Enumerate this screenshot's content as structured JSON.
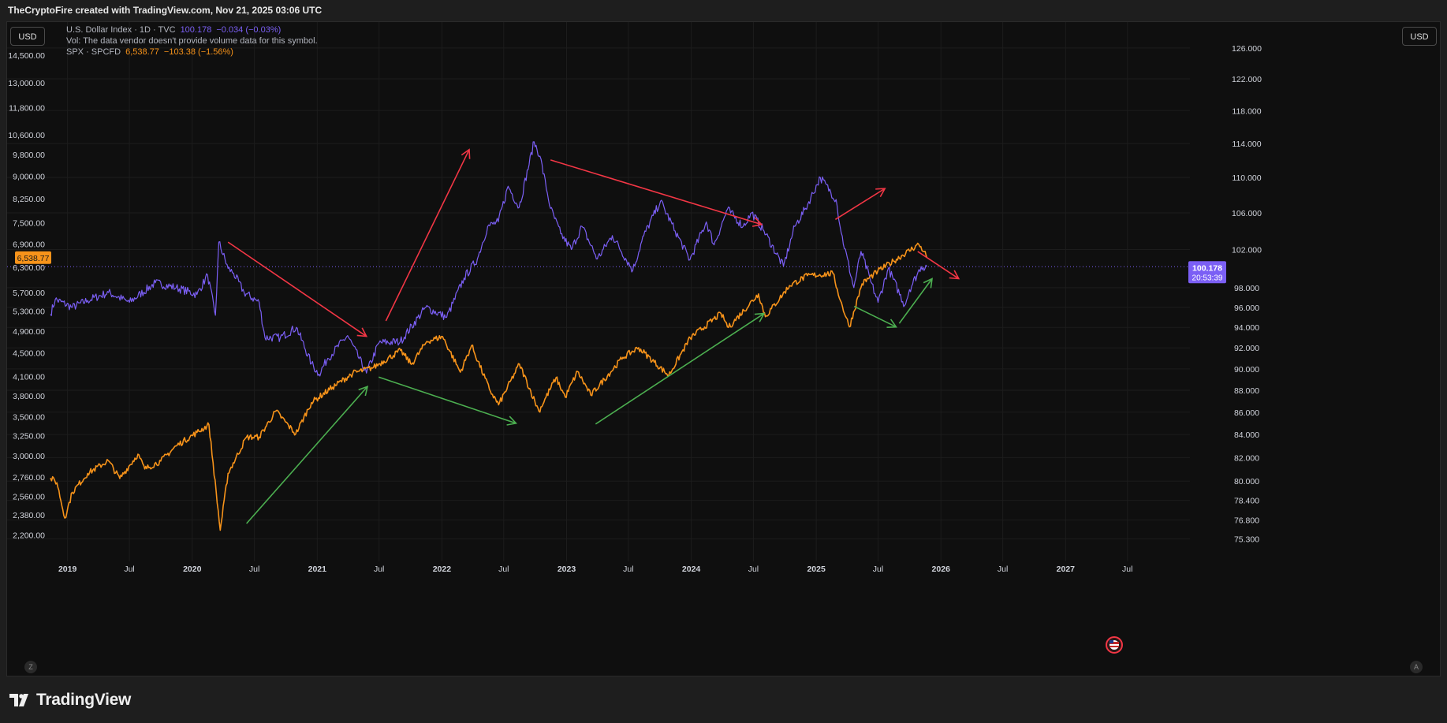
{
  "header": {
    "title": "TheCryptoFire created with TradingView.com, Nov 21, 2025 03:06 UTC"
  },
  "toolbar": {
    "currency_left": "USD",
    "currency_right": "USD",
    "auto_label": "A",
    "zoom_label": "Z"
  },
  "footer": {
    "logo_text": "TradingView"
  },
  "legend": {
    "dxy": {
      "name": "U.S. Dollar Index · 1D · TVC",
      "price": "100.178",
      "change": "−0.034 (−0.03%)"
    },
    "vol": {
      "text": "Vol: The data vendor doesn't provide volume data for this symbol."
    },
    "spx": {
      "name": "SPX · SPCFD",
      "price": "6,538.77",
      "change": "−103.38 (−1.56%)"
    }
  },
  "badges": {
    "spx_price": "6,538.77",
    "dxy_price": "100.178",
    "dxy_countdown": "20:53:39"
  },
  "colors": {
    "dxy": "#7b5ff5",
    "spx": "#f7931a",
    "up_arrow": "#4caf50",
    "down_arrow": "#f23645",
    "grid": "#1c1c1c",
    "price_line": "#7b5ff5"
  },
  "chart_data": {
    "type": "line",
    "x_axis": {
      "type": "date",
      "range": [
        "2018-11-12",
        "2027-12-31"
      ],
      "ticks": [
        {
          "date": "2019-01-01",
          "label": "2019"
        },
        {
          "date": "2019-07-01",
          "label": "Jul"
        },
        {
          "date": "2020-01-01",
          "label": "2020"
        },
        {
          "date": "2020-07-01",
          "label": "Jul"
        },
        {
          "date": "2021-01-01",
          "label": "2021"
        },
        {
          "date": "2021-07-01",
          "label": "Jul"
        },
        {
          "date": "2022-01-01",
          "label": "2022"
        },
        {
          "date": "2022-07-01",
          "label": "Jul"
        },
        {
          "date": "2023-01-01",
          "label": "2023"
        },
        {
          "date": "2023-07-01",
          "label": "Jul"
        },
        {
          "date": "2024-01-01",
          "label": "2024"
        },
        {
          "date": "2024-07-01",
          "label": "Jul"
        },
        {
          "date": "2025-01-01",
          "label": "2025"
        },
        {
          "date": "2025-07-01",
          "label": "Jul"
        },
        {
          "date": "2026-01-01",
          "label": "2026"
        },
        {
          "date": "2026-07-01",
          "label": "Jul"
        },
        {
          "date": "2027-01-01",
          "label": "2027"
        },
        {
          "date": "2027-07-01",
          "label": "Jul"
        }
      ]
    },
    "left_axis": {
      "scale": "log",
      "series": "SPX",
      "ticks": [
        {
          "v": 14500,
          "label": "14,500.00"
        },
        {
          "v": 13000,
          "label": "13,000.00"
        },
        {
          "v": 11800,
          "label": "11,800.00"
        },
        {
          "v": 10600,
          "label": "10,600.00"
        },
        {
          "v": 9800,
          "label": "9,800.00"
        },
        {
          "v": 9000,
          "label": "9,000.00"
        },
        {
          "v": 8250,
          "label": "8,250.00"
        },
        {
          "v": 7500,
          "label": "7,500.00"
        },
        {
          "v": 6900,
          "label": "6,900.00"
        },
        {
          "v": 6300,
          "label": "6,300.00"
        },
        {
          "v": 5700,
          "label": "5,700.00"
        },
        {
          "v": 5300,
          "label": "5,300.00"
        },
        {
          "v": 4900,
          "label": "4,900.00"
        },
        {
          "v": 4500,
          "label": "4,500.00"
        },
        {
          "v": 4100,
          "label": "4,100.00"
        },
        {
          "v": 3800,
          "label": "3,800.00"
        },
        {
          "v": 3500,
          "label": "3,500.00"
        },
        {
          "v": 3250,
          "label": "3,250.00"
        },
        {
          "v": 3000,
          "label": "3,000.00"
        },
        {
          "v": 2760,
          "label": "2,760.00"
        },
        {
          "v": 2560,
          "label": "2,560.00"
        },
        {
          "v": 2380,
          "label": "2,380.00"
        },
        {
          "v": 2200,
          "label": "2,200.00"
        }
      ]
    },
    "right_axis": {
      "scale": "log",
      "series": "DXY",
      "ticks": [
        {
          "v": 126,
          "label": "126.000"
        },
        {
          "v": 122,
          "label": "122.000"
        },
        {
          "v": 118,
          "label": "118.000"
        },
        {
          "v": 114,
          "label": "114.000"
        },
        {
          "v": 110,
          "label": "110.000"
        },
        {
          "v": 106,
          "label": "106.000"
        },
        {
          "v": 102,
          "label": "102.000"
        },
        {
          "v": 98,
          "label": "98.000"
        },
        {
          "v": 96,
          "label": "96.000"
        },
        {
          "v": 94,
          "label": "94.000"
        },
        {
          "v": 92,
          "label": "92.000"
        },
        {
          "v": 90,
          "label": "90.000"
        },
        {
          "v": 88,
          "label": "88.000"
        },
        {
          "v": 86,
          "label": "86.000"
        },
        {
          "v": 84,
          "label": "84.000"
        },
        {
          "v": 82,
          "label": "82.000"
        },
        {
          "v": 80,
          "label": "80.000"
        },
        {
          "v": 78.4,
          "label": "78.400"
        },
        {
          "v": 76.8,
          "label": "76.800"
        },
        {
          "v": 75.3,
          "label": "75.300"
        }
      ]
    },
    "series": [
      {
        "name": "U.S. Dollar Index",
        "axis": "right",
        "color": "#7b5ff5",
        "points": [
          [
            "2018-11-12",
            95.3
          ],
          [
            "2018-11-26",
            96.8
          ],
          [
            "2019-01-15",
            96.0
          ],
          [
            "2019-03-01",
            96.7
          ],
          [
            "2019-05-01",
            97.5
          ],
          [
            "2019-07-01",
            96.5
          ],
          [
            "2019-09-15",
            98.5
          ],
          [
            "2019-11-15",
            98.0
          ],
          [
            "2020-01-15",
            97.3
          ],
          [
            "2020-02-15",
            99.3
          ],
          [
            "2020-03-09",
            95.2
          ],
          [
            "2020-03-19",
            102.8
          ],
          [
            "2020-04-15",
            100.0
          ],
          [
            "2020-05-01",
            99.5
          ],
          [
            "2020-06-01",
            97.5
          ],
          [
            "2020-07-15",
            96.5
          ],
          [
            "2020-08-01",
            93.0
          ],
          [
            "2020-09-15",
            93.0
          ],
          [
            "2020-11-01",
            94.0
          ],
          [
            "2020-12-15",
            90.5
          ],
          [
            "2021-01-06",
            89.5
          ],
          [
            "2021-02-01",
            91.0
          ],
          [
            "2021-03-31",
            93.2
          ],
          [
            "2021-05-25",
            89.6
          ],
          [
            "2021-07-01",
            92.5
          ],
          [
            "2021-09-01",
            92.6
          ],
          [
            "2021-11-15",
            96.0
          ],
          [
            "2022-01-15",
            95.0
          ],
          [
            "2022-03-07",
            99.0
          ],
          [
            "2022-04-15",
            101.0
          ],
          [
            "2022-05-15",
            104.5
          ],
          [
            "2022-06-15",
            105.0
          ],
          [
            "2022-07-14",
            109.0
          ],
          [
            "2022-08-15",
            106.6
          ],
          [
            "2022-09-28",
            114.2
          ],
          [
            "2022-10-15",
            112.5
          ],
          [
            "2022-11-15",
            106.5
          ],
          [
            "2022-12-15",
            103.7
          ],
          [
            "2023-01-15",
            102.0
          ],
          [
            "2023-02-15",
            104.5
          ],
          [
            "2023-04-01",
            101.0
          ],
          [
            "2023-05-15",
            103.5
          ],
          [
            "2023-07-14",
            99.8
          ],
          [
            "2023-08-15",
            103.5
          ],
          [
            "2023-10-03",
            107.3
          ],
          [
            "2023-11-15",
            104.0
          ],
          [
            "2023-12-28",
            100.9
          ],
          [
            "2024-02-14",
            105.0
          ],
          [
            "2024-03-08",
            102.5
          ],
          [
            "2024-04-16",
            106.4
          ],
          [
            "2024-06-01",
            104.5
          ],
          [
            "2024-06-26",
            106.0
          ],
          [
            "2024-08-01",
            104.0
          ],
          [
            "2024-09-27",
            100.2
          ],
          [
            "2024-10-30",
            104.5
          ],
          [
            "2024-12-01",
            106.5
          ],
          [
            "2025-01-13",
            110.0
          ],
          [
            "2025-02-28",
            107.5
          ],
          [
            "2025-03-15",
            103.8
          ],
          [
            "2025-04-21",
            98.0
          ],
          [
            "2025-05-12",
            101.8
          ],
          [
            "2025-06-10",
            98.6
          ],
          [
            "2025-07-01",
            96.5
          ],
          [
            "2025-07-31",
            100.0
          ],
          [
            "2025-09-17",
            96.2
          ],
          [
            "2025-10-01",
            97.8
          ],
          [
            "2025-11-04",
            100.2
          ],
          [
            "2025-11-21",
            100.178
          ]
        ]
      },
      {
        "name": "SPX",
        "axis": "left",
        "color": "#f7931a",
        "points": [
          [
            "2018-11-12",
            2750
          ],
          [
            "2018-12-01",
            2700
          ],
          [
            "2018-12-24",
            2350
          ],
          [
            "2019-01-15",
            2600
          ],
          [
            "2019-03-01",
            2800
          ],
          [
            "2019-04-30",
            2945
          ],
          [
            "2019-06-03",
            2745
          ],
          [
            "2019-07-26",
            3020
          ],
          [
            "2019-08-15",
            2850
          ],
          [
            "2019-10-01",
            2940
          ],
          [
            "2019-11-15",
            3120
          ],
          [
            "2020-01-15",
            3290
          ],
          [
            "2020-02-19",
            3390
          ],
          [
            "2020-03-23",
            2240
          ],
          [
            "2020-04-15",
            2800
          ],
          [
            "2020-06-08",
            3230
          ],
          [
            "2020-07-15",
            3230
          ],
          [
            "2020-09-02",
            3580
          ],
          [
            "2020-10-30",
            3270
          ],
          [
            "2020-12-15",
            3700
          ],
          [
            "2021-02-15",
            3930
          ],
          [
            "2021-04-15",
            4150
          ],
          [
            "2021-06-15",
            4250
          ],
          [
            "2021-09-02",
            4540
          ],
          [
            "2021-10-04",
            4300
          ],
          [
            "2021-11-18",
            4705
          ],
          [
            "2022-01-03",
            4795
          ],
          [
            "2022-02-24",
            4170
          ],
          [
            "2022-03-29",
            4630
          ],
          [
            "2022-05-20",
            3900
          ],
          [
            "2022-06-16",
            3667
          ],
          [
            "2022-08-16",
            4305
          ],
          [
            "2022-10-12",
            3577
          ],
          [
            "2022-12-01",
            4080
          ],
          [
            "2022-12-28",
            3780
          ],
          [
            "2023-02-02",
            4180
          ],
          [
            "2023-03-13",
            3810
          ],
          [
            "2023-06-15",
            4420
          ],
          [
            "2023-07-31",
            4590
          ],
          [
            "2023-10-27",
            4117
          ],
          [
            "2023-12-29",
            4770
          ],
          [
            "2024-03-28",
            5250
          ],
          [
            "2024-04-19",
            4970
          ],
          [
            "2024-07-16",
            5670
          ],
          [
            "2024-08-05",
            5185
          ],
          [
            "2024-10-15",
            5860
          ],
          [
            "2024-12-06",
            6090
          ],
          [
            "2025-02-19",
            6144
          ],
          [
            "2025-03-13",
            5520
          ],
          [
            "2025-04-08",
            4982
          ],
          [
            "2025-05-15",
            5900
          ],
          [
            "2025-06-30",
            6200
          ],
          [
            "2025-08-15",
            6450
          ],
          [
            "2025-10-28",
            6890
          ],
          [
            "2025-11-13",
            6700
          ],
          [
            "2025-11-21",
            6538.77
          ]
        ]
      }
    ],
    "annotations": [
      {
        "type": "arrow",
        "color": "down",
        "from": [
          "2020-04-15",
          6950
        ],
        "to": [
          "2021-05-25",
          4800
        ]
      },
      {
        "type": "arrow",
        "color": "down",
        "from": [
          "2021-07-21",
          5100
        ],
        "to": [
          "2022-03-22",
          10000
        ]
      },
      {
        "type": "arrow",
        "color": "down",
        "from": [
          "2022-11-15",
          9600
        ],
        "to": [
          "2024-07-25",
          7450
        ]
      },
      {
        "type": "arrow",
        "color": "down",
        "from": [
          "2025-02-26",
          7600
        ],
        "to": [
          "2025-07-21",
          8580
        ]
      },
      {
        "type": "arrow",
        "color": "down",
        "from": [
          "2025-10-25",
          6700
        ],
        "to": [
          "2026-02-22",
          6020
        ]
      },
      {
        "type": "arrow",
        "color": "up",
        "from": [
          "2020-06-08",
          2300
        ],
        "to": [
          "2021-05-28",
          3940
        ]
      },
      {
        "type": "arrow",
        "color": "up",
        "from": [
          "2021-06-30",
          4090
        ],
        "to": [
          "2022-08-06",
          3410
        ]
      },
      {
        "type": "arrow",
        "color": "up",
        "from": [
          "2023-03-27",
          3400
        ],
        "to": [
          "2024-08-01",
          5250
        ]
      },
      {
        "type": "arrow",
        "color": "up",
        "from": [
          "2025-04-22",
          5400
        ],
        "to": [
          "2025-08-23",
          4980
        ]
      },
      {
        "type": "arrow",
        "color": "up",
        "from": [
          "2025-09-01",
          5050
        ],
        "to": [
          "2025-12-06",
          6020
        ]
      }
    ]
  }
}
